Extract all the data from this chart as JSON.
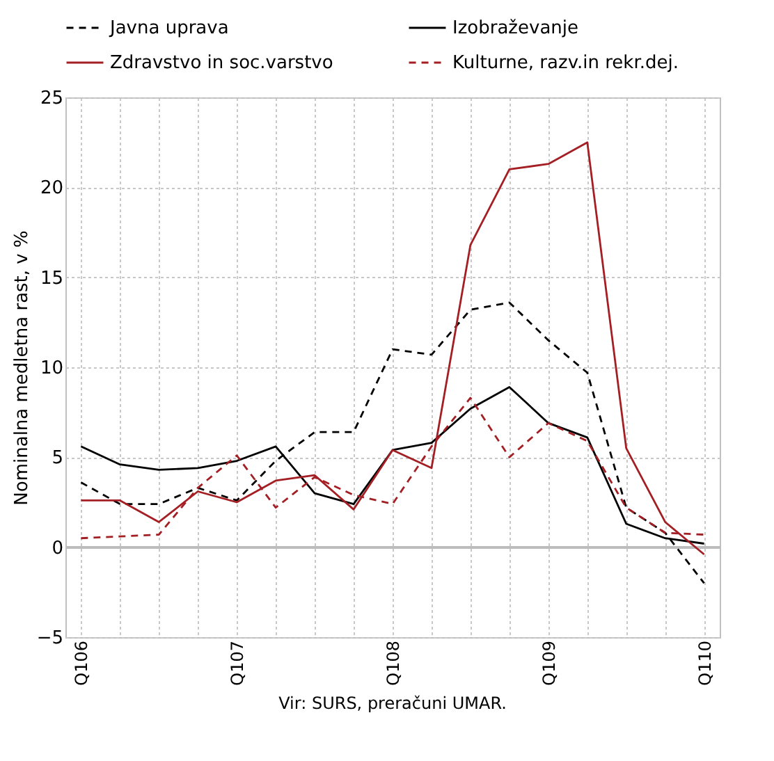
{
  "chart_data": {
    "type": "line",
    "ylabel": "Nominalna medletna rast, v %",
    "annotations": [
      "Vir: SURS, preračuni UMAR."
    ],
    "categories": [
      "Q106",
      null,
      null,
      null,
      "Q107",
      null,
      null,
      null,
      "Q108",
      null,
      null,
      null,
      "Q109",
      null,
      null,
      null,
      "Q110"
    ],
    "series": [
      {
        "name": "Javna uprava",
        "color": "#000000",
        "line_style": "dashed",
        "values": [
          3.6,
          2.4,
          2.4,
          3.3,
          2.6,
          4.8,
          6.4,
          6.4,
          11.0,
          10.7,
          13.2,
          13.6,
          11.5,
          9.7,
          2.2,
          0.8,
          -2.0
        ]
      },
      {
        "name": "Izobraževanje",
        "color": "#000000",
        "line_style": "solid",
        "values": [
          5.6,
          4.6,
          4.3,
          4.4,
          4.8,
          5.6,
          3.0,
          2.4,
          5.4,
          5.8,
          7.7,
          8.9,
          6.9,
          6.1,
          1.3,
          0.5,
          0.2
        ]
      },
      {
        "name": "Zdravstvo in soc.varstvo",
        "color": "#a31f24",
        "line_style": "solid",
        "values": [
          2.6,
          2.6,
          1.4,
          3.1,
          2.5,
          3.7,
          4.0,
          2.1,
          5.4,
          4.4,
          16.8,
          21.0,
          21.3,
          22.5,
          5.5,
          1.4,
          -0.4
        ]
      },
      {
        "name": "Kulturne, razv.in rekr.dej.",
        "color": "#a31f24",
        "line_style": "dashed",
        "values": [
          0.5,
          0.6,
          0.7,
          3.3,
          5.1,
          2.2,
          3.9,
          2.9,
          2.4,
          5.6,
          8.3,
          5.0,
          6.9,
          5.9,
          2.2,
          0.8,
          0.7
        ]
      }
    ],
    "ylim": [
      -5,
      25
    ],
    "yticks": [
      -5,
      0,
      5,
      10,
      15,
      20,
      25
    ],
    "grid": true,
    "legend": "top",
    "marker": "none"
  }
}
